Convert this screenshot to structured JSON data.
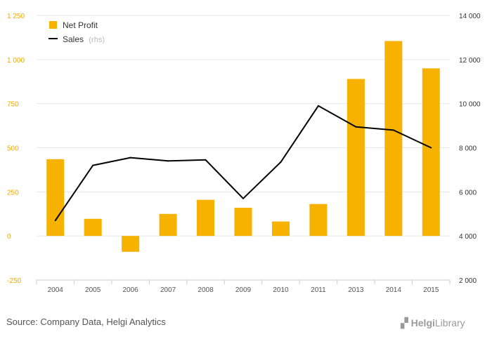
{
  "chart_data": {
    "type": "bar",
    "categories": [
      "2004",
      "2005",
      "2006",
      "2007",
      "2008",
      "2009",
      "2010",
      "2011",
      "2013",
      "2014",
      "2015"
    ],
    "series": [
      {
        "name": "Net Profit",
        "type": "bar",
        "axis": "left",
        "color": "#f7b200",
        "values": [
          435,
          97,
          -90,
          125,
          205,
          160,
          82,
          181,
          890,
          1105,
          950
        ]
      },
      {
        "name": "Sales",
        "name_suffix": "(rhs)",
        "type": "line",
        "axis": "right",
        "color": "#000000",
        "values": [
          4700,
          7200,
          7550,
          7400,
          7450,
          5700,
          7350,
          9900,
          8950,
          8800,
          8000
        ]
      }
    ],
    "y_left": {
      "min": -250,
      "max": 1250,
      "ticks": [
        -250,
        0,
        250,
        500,
        750,
        1000,
        1250
      ],
      "tick_labels": [
        "-250",
        "0",
        "250",
        "500",
        "750",
        "1 000",
        "1 250"
      ]
    },
    "y_right": {
      "min": 2000,
      "max": 14000,
      "ticks": [
        2000,
        4000,
        6000,
        8000,
        10000,
        12000,
        14000
      ],
      "tick_labels": [
        "2 000",
        "4 000",
        "6 000",
        "8 000",
        "10 000",
        "12 000",
        "14 000"
      ]
    },
    "grid": true,
    "legend_position": "top-left"
  },
  "source": "Source: Company Data, Helgi Analytics",
  "logo": {
    "brand": "Helgi",
    "suffix": "Library"
  }
}
